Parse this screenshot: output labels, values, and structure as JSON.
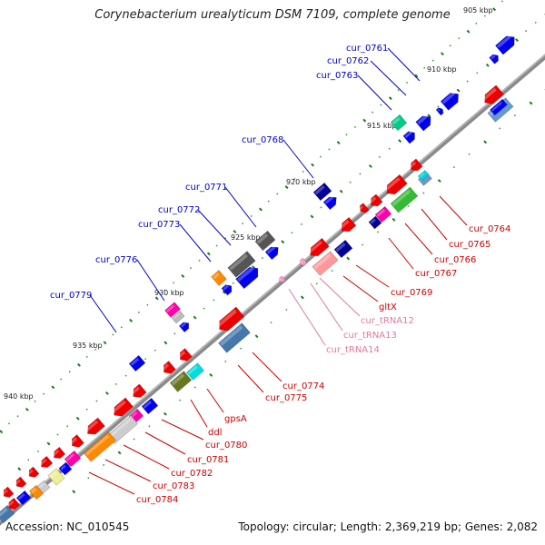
{
  "title": "Corynebacterium urealyticum DSM 7109, complete genome",
  "accession_text": "Accession: NC_010545",
  "summary_text": "Topology: circular; Length: 2,369,219 bp; Genes: 2,082",
  "colors": {
    "backbone": "#8a8a8a",
    "tick_major": "#1f7a1f",
    "tick_minor": "#2a9a2a",
    "label_forward": "#0000cc",
    "label_reverse": "#cc0000",
    "label_rna": "#e07aa0"
  },
  "scale_labels": [
    {
      "text": "905 kbp"
    },
    {
      "text": "910 kbp"
    },
    {
      "text": "915 kbp"
    },
    {
      "text": "920 kbp"
    },
    {
      "text": "925 kbp"
    },
    {
      "text": "930 kbp"
    },
    {
      "text": "935 kbp"
    },
    {
      "text": "940 kbp"
    }
  ],
  "gene_labels_forward": [
    "cur_0761",
    "cur_0762",
    "cur_0763",
    "cur_0768",
    "cur_0771",
    "cur_0772",
    "cur_0773",
    "cur_0776",
    "cur_0779"
  ],
  "gene_labels_reverse": [
    "cur_0764",
    "cur_0765",
    "cur_0766",
    "cur_0767",
    "cur_0769",
    "gltX",
    "cur_0774",
    "cur_0775",
    "gpsA",
    "ddl",
    "cur_0780",
    "cur_0781",
    "cur_0782",
    "cur_0783",
    "cur_0784"
  ],
  "rna_labels": [
    "cur_tRNA12",
    "cur_tRNA13",
    "cur_tRNA14"
  ]
}
